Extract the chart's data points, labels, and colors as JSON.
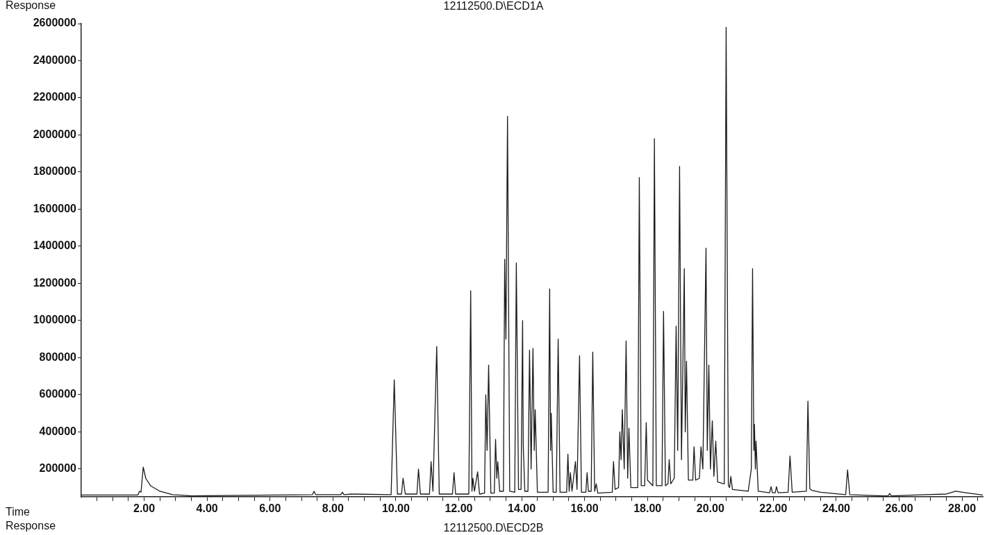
{
  "chart_data": {
    "type": "line",
    "title": "12112500.D\\ECD1A",
    "ylabel": "Response",
    "xlabel": "Time",
    "annotations": [
      "Response",
      "12112500.D\\ECD2B"
    ],
    "color": "#1a1a1a",
    "marker": "none",
    "line_style": "solid",
    "grid": false,
    "legend": false,
    "xlim": [
      0,
      28.66
    ],
    "ylim": [
      50000,
      2600000
    ],
    "xticks": [
      {
        "value": 0.5,
        "label": null
      },
      {
        "value": 1,
        "label": null
      },
      {
        "value": 1.5,
        "label": null
      },
      {
        "value": 2,
        "label": "2.00"
      },
      {
        "value": 2.5,
        "label": null
      },
      {
        "value": 3,
        "label": null
      },
      {
        "value": 3.5,
        "label": null
      },
      {
        "value": 4,
        "label": "4.00"
      },
      {
        "value": 4.5,
        "label": null
      },
      {
        "value": 5,
        "label": null
      },
      {
        "value": 5.5,
        "label": null
      },
      {
        "value": 6,
        "label": "6.00"
      },
      {
        "value": 6.5,
        "label": null
      },
      {
        "value": 7,
        "label": null
      },
      {
        "value": 7.5,
        "label": null
      },
      {
        "value": 8,
        "label": "8.00"
      },
      {
        "value": 8.5,
        "label": null
      },
      {
        "value": 9,
        "label": null
      },
      {
        "value": 9.5,
        "label": null
      },
      {
        "value": 10,
        "label": "10.00"
      },
      {
        "value": 10.5,
        "label": null
      },
      {
        "value": 11,
        "label": null
      },
      {
        "value": 11.5,
        "label": null
      },
      {
        "value": 12,
        "label": "12.00"
      },
      {
        "value": 12.5,
        "label": null
      },
      {
        "value": 13,
        "label": null
      },
      {
        "value": 13.5,
        "label": null
      },
      {
        "value": 14,
        "label": "14.00"
      },
      {
        "value": 14.5,
        "label": null
      },
      {
        "value": 15,
        "label": null
      },
      {
        "value": 15.5,
        "label": null
      },
      {
        "value": 16,
        "label": "16.00"
      },
      {
        "value": 16.5,
        "label": null
      },
      {
        "value": 17,
        "label": null
      },
      {
        "value": 17.5,
        "label": null
      },
      {
        "value": 18,
        "label": "18.00"
      },
      {
        "value": 18.5,
        "label": null
      },
      {
        "value": 19,
        "label": null
      },
      {
        "value": 19.5,
        "label": null
      },
      {
        "value": 20,
        "label": "20.00"
      },
      {
        "value": 20.5,
        "label": null
      },
      {
        "value": 21,
        "label": null
      },
      {
        "value": 21.5,
        "label": null
      },
      {
        "value": 22,
        "label": "22.00"
      },
      {
        "value": 22.5,
        "label": null
      },
      {
        "value": 23,
        "label": null
      },
      {
        "value": 23.5,
        "label": null
      },
      {
        "value": 24,
        "label": "24.00"
      },
      {
        "value": 24.5,
        "label": null
      },
      {
        "value": 25,
        "label": null
      },
      {
        "value": 25.5,
        "label": null
      },
      {
        "value": 26,
        "label": "26.00"
      },
      {
        "value": 26.5,
        "label": null
      },
      {
        "value": 27,
        "label": null
      },
      {
        "value": 27.5,
        "label": null
      },
      {
        "value": 28,
        "label": "28.00"
      },
      {
        "value": 28.5,
        "label": null
      }
    ],
    "yticks": [
      200000,
      400000,
      600000,
      800000,
      1000000,
      1200000,
      1400000,
      1600000,
      1800000,
      2000000,
      2200000,
      2400000,
      2600000
    ],
    "x": [
      0,
      1.8,
      1.85,
      1.9,
      1.97,
      2.05,
      2.2,
      2.5,
      2.9,
      3.5,
      5,
      7.35,
      7.4,
      7.45,
      8.25,
      8.3,
      8.35,
      8.6,
      9.85,
      9.95,
      10.05,
      10.18,
      10.23,
      10.3,
      10.67,
      10.72,
      10.78,
      11.07,
      11.12,
      11.18,
      11.3,
      11.38,
      11.8,
      11.85,
      11.9,
      12.32,
      12.38,
      12.42,
      12.45,
      12.5,
      12.6,
      12.66,
      12.82,
      12.86,
      12.9,
      12.95,
      13.02,
      13.13,
      13.17,
      13.21,
      13.24,
      13.3,
      13.42,
      13.46,
      13.5,
      13.55,
      13.62,
      13.78,
      13.83,
      13.9,
      13.98,
      14.03,
      14.05,
      14.1,
      14.2,
      14.25,
      14.3,
      14.36,
      14.4,
      14.43,
      14.5,
      14.84,
      14.89,
      14.92,
      14.94,
      15.0,
      15.1,
      15.16,
      15.22,
      15.43,
      15.47,
      15.51,
      15.55,
      15.6,
      15.71,
      15.76,
      15.84,
      15.9,
      16.04,
      16.08,
      16.12,
      16.21,
      16.26,
      16.32,
      16.37,
      16.42,
      16.88,
      16.92,
      16.97,
      17.08,
      17.12,
      17.16,
      17.2,
      17.26,
      17.32,
      17.37,
      17.41,
      17.47,
      17.69,
      17.74,
      17.8,
      17.91,
      17.96,
      18.0,
      18.17,
      18.22,
      18.28,
      18.46,
      18.51,
      18.57,
      18.65,
      18.69,
      18.74,
      18.85,
      18.91,
      18.96,
      19.02,
      19.08,
      19.17,
      19.2,
      19.24,
      19.3,
      19.44,
      19.48,
      19.53,
      19.65,
      19.7,
      19.76,
      19.86,
      19.9,
      19.95,
      20.0,
      20.06,
      20.11,
      20.17,
      20.23,
      20.44,
      20.5,
      20.57,
      20.61,
      20.65,
      20.7,
      21.2,
      21.3,
      21.34,
      21.38,
      21.4,
      21.43,
      21.45,
      21.52,
      21.88,
      21.93,
      21.97,
      22.06,
      22.1,
      22.15,
      22.47,
      22.53,
      22.6,
      23.05,
      23.1,
      23.16,
      23.22,
      23.5,
      24.3,
      24.36,
      24.43,
      25.5,
      25.65,
      25.7,
      25.75,
      26.8,
      27.5,
      27.8,
      28.2,
      28.66
    ],
    "values": [
      60000,
      60000,
      80000,
      75000,
      210000,
      150000,
      110000,
      80000,
      62000,
      55000,
      58000,
      62000,
      80000,
      62000,
      62000,
      75000,
      62000,
      65000,
      62000,
      680000,
      65000,
      65000,
      150000,
      65000,
      65000,
      200000,
      65000,
      65000,
      240000,
      80000,
      860000,
      65000,
      65000,
      180000,
      65000,
      65000,
      1160000,
      80000,
      150000,
      80000,
      185000,
      65000,
      70000,
      600000,
      300000,
      760000,
      70000,
      70000,
      360000,
      150000,
      240000,
      80000,
      80000,
      1330000,
      900000,
      2100000,
      80000,
      75000,
      1310000,
      90000,
      90000,
      1000000,
      330000,
      80000,
      80000,
      840000,
      200000,
      850000,
      300000,
      520000,
      75000,
      75000,
      1170000,
      300000,
      500000,
      75000,
      75000,
      900000,
      75000,
      75000,
      280000,
      80000,
      180000,
      80000,
      240000,
      90000,
      810000,
      75000,
      75000,
      180000,
      80000,
      80000,
      830000,
      80000,
      120000,
      70000,
      75000,
      240000,
      90000,
      100000,
      400000,
      250000,
      520000,
      200000,
      890000,
      150000,
      420000,
      100000,
      100000,
      1770000,
      110000,
      110000,
      450000,
      140000,
      110000,
      1980000,
      110000,
      110000,
      1050000,
      110000,
      120000,
      250000,
      120000,
      150000,
      970000,
      300000,
      1830000,
      250000,
      1280000,
      400000,
      780000,
      140000,
      140000,
      320000,
      140000,
      150000,
      320000,
      200000,
      1390000,
      300000,
      760000,
      200000,
      460000,
      160000,
      350000,
      130000,
      120000,
      2580000,
      110000,
      100000,
      160000,
      90000,
      80000,
      200000,
      1280000,
      300000,
      440000,
      200000,
      350000,
      80000,
      72000,
      105000,
      72000,
      72000,
      105000,
      72000,
      75000,
      270000,
      75000,
      80000,
      565000,
      95000,
      85000,
      75000,
      62000,
      195000,
      62000,
      55000,
      55000,
      68000,
      55000,
      62000,
      65000,
      80000,
      70000,
      60000
    ]
  }
}
